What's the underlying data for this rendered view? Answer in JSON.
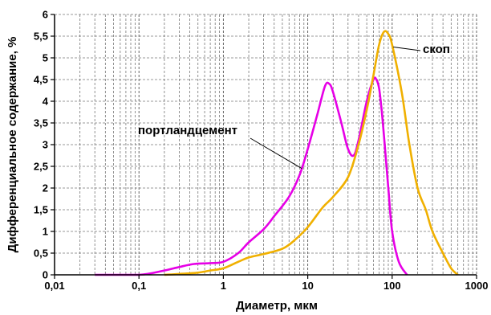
{
  "chart_data": {
    "type": "line",
    "xlabel": "Диаметр, мкм",
    "ylabel": "Дифференциальное содержание, %",
    "x_scale": "log",
    "xlim": [
      0.01,
      1000
    ],
    "ylim": [
      0,
      6
    ],
    "grid": true,
    "x_ticks": [
      "0,01",
      "0,1",
      "1",
      "10",
      "100",
      "1000"
    ],
    "x_tick_values": [
      0.01,
      0.1,
      1,
      10,
      100,
      1000
    ],
    "y_ticks": [
      "0",
      "0,5",
      "1",
      "1,5",
      "2",
      "2,5",
      "3",
      "3,5",
      "4",
      "4,5",
      "5",
      "5,5",
      "6"
    ],
    "y_tick_values": [
      0,
      0.5,
      1,
      1.5,
      2,
      2.5,
      3,
      3.5,
      4,
      4.5,
      5,
      5.5,
      6
    ],
    "series": [
      {
        "name": "портландцемент",
        "color": "#e600e6",
        "x": [
          0.03,
          0.1,
          0.2,
          0.3,
          0.45,
          0.7,
          1,
          1.5,
          2,
          3,
          4,
          6,
          8,
          10,
          13,
          16,
          18,
          20,
          25,
          30,
          35,
          40,
          50,
          60,
          65,
          70,
          75,
          80,
          90,
          100,
          120,
          150
        ],
        "y": [
          0,
          0,
          0.1,
          0.18,
          0.25,
          0.27,
          0.3,
          0.5,
          0.75,
          1.05,
          1.35,
          1.8,
          2.3,
          2.9,
          3.7,
          4.35,
          4.4,
          4.2,
          3.5,
          2.9,
          2.75,
          3.1,
          4.0,
          4.5,
          4.5,
          4.3,
          3.8,
          3.2,
          2.0,
          1.0,
          0.3,
          0
        ]
      },
      {
        "name": "скоп",
        "color": "#f0b000",
        "x": [
          0.2,
          0.3,
          0.5,
          0.7,
          1,
          1.5,
          2,
          3,
          5,
          7,
          10,
          15,
          20,
          30,
          40,
          50,
          60,
          70,
          80,
          90,
          100,
          130,
          160,
          200,
          250,
          300,
          400,
          500,
          600
        ],
        "y": [
          0,
          0.02,
          0.05,
          0.1,
          0.15,
          0.3,
          0.4,
          0.48,
          0.6,
          0.8,
          1.1,
          1.55,
          1.8,
          2.25,
          3.0,
          3.8,
          4.6,
          5.3,
          5.6,
          5.55,
          5.3,
          4.2,
          3.0,
          2.0,
          1.5,
          1.0,
          0.5,
          0.15,
          0
        ]
      }
    ],
    "annotations": [
      {
        "text": "портландцемент",
        "series": "портландцемент"
      },
      {
        "text": "скоп",
        "series": "скоп"
      }
    ]
  }
}
